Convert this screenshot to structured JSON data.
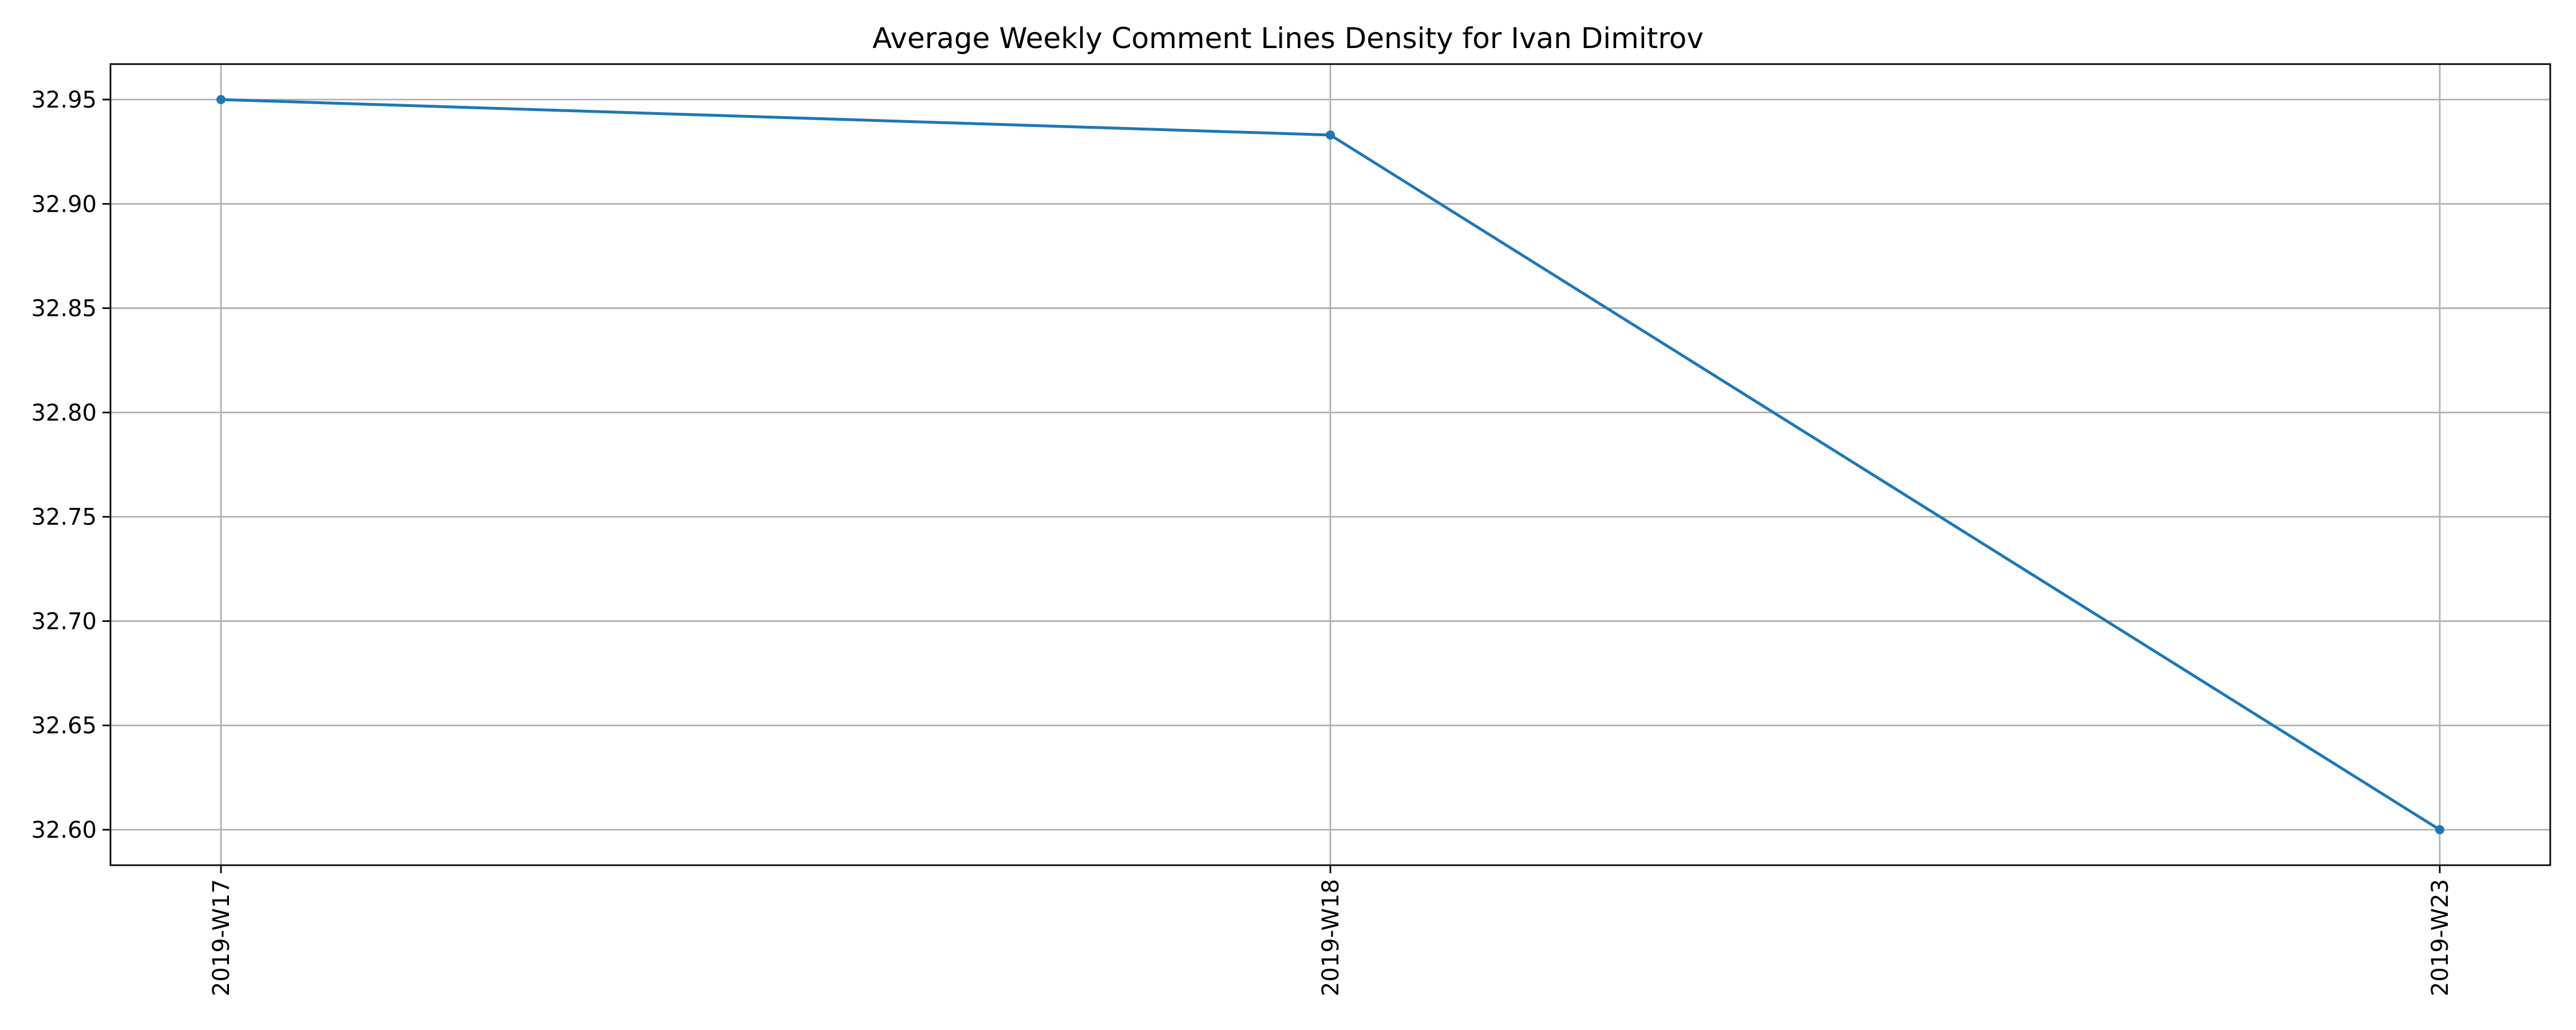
{
  "chart_data": {
    "type": "line",
    "title": "Average Weekly Comment Lines Density for Ivan Dimitrov",
    "xlabel": "",
    "ylabel": "",
    "categories": [
      "2019-W17",
      "2019-W18",
      "2019-W23"
    ],
    "series": [
      {
        "values": [
          32.95,
          32.933,
          32.6
        ],
        "color": "#1f77b4",
        "marker": "circle"
      }
    ],
    "ylim": [
      32.583,
      32.967
    ],
    "yticks": [
      32.6,
      32.65,
      32.7,
      32.75,
      32.8,
      32.85,
      32.9,
      32.95
    ],
    "ytick_labels": [
      "32.60",
      "32.65",
      "32.70",
      "32.75",
      "32.80",
      "32.85",
      "32.90",
      "32.95"
    ],
    "xtick_rotation": "vertical",
    "grid": true,
    "legend": "none"
  }
}
